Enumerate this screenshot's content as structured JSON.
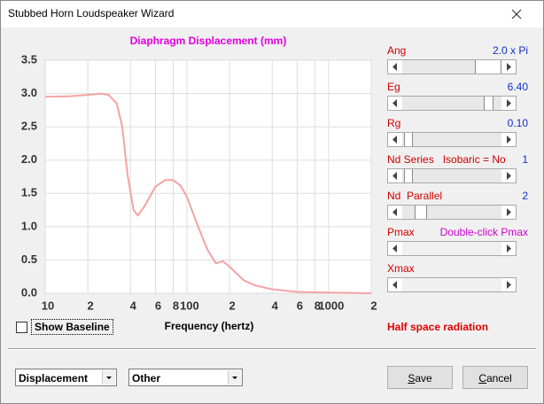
{
  "window": {
    "title": "Stubbed Horn Loudspeaker Wizard"
  },
  "chart_data": {
    "type": "line",
    "title": "Diaphragm Displacement (mm)",
    "x_label": "Frequency (hertz)",
    "x_scale": "log",
    "grid": true,
    "xlim": [
      10,
      2000
    ],
    "ylim": [
      0,
      3.5
    ],
    "xticks": [
      {
        "value": 10,
        "label": "10"
      },
      {
        "value": 20,
        "label": "2"
      },
      {
        "value": 40,
        "label": "4"
      },
      {
        "value": 60,
        "label": "6"
      },
      {
        "value": 80,
        "label": "8"
      },
      {
        "value": 100,
        "label": "100"
      },
      {
        "value": 200,
        "label": "2"
      },
      {
        "value": 400,
        "label": "4"
      },
      {
        "value": 600,
        "label": "6"
      },
      {
        "value": 800,
        "label": "8"
      },
      {
        "value": 1000,
        "label": "1000"
      },
      {
        "value": 2000,
        "label": "2"
      }
    ],
    "yticks": [
      {
        "value": 0,
        "label": "0.0"
      },
      {
        "value": 0.5,
        "label": "0.5"
      },
      {
        "value": 1,
        "label": "1.0"
      },
      {
        "value": 1.5,
        "label": "1.5"
      },
      {
        "value": 2,
        "label": "2.0"
      },
      {
        "value": 2.5,
        "label": "2.5"
      },
      {
        "value": 3,
        "label": "3.0"
      },
      {
        "value": 3.5,
        "label": "3.5"
      }
    ],
    "x": [
      10,
      15,
      20,
      25,
      28,
      32,
      35,
      38,
      42,
      45,
      50,
      60,
      70,
      80,
      90,
      100,
      120,
      140,
      160,
      180,
      200,
      250,
      300,
      400,
      600,
      1000,
      2000
    ],
    "series": [
      {
        "color": "#f4a3a3",
        "values": [
          2.95,
          2.96,
          2.98,
          3.0,
          2.98,
          2.85,
          2.5,
          1.8,
          1.25,
          1.17,
          1.3,
          1.6,
          1.7,
          1.7,
          1.62,
          1.45,
          1.0,
          0.65,
          0.45,
          0.48,
          0.4,
          0.2,
          0.12,
          0.06,
          0.02,
          0.01,
          0.0
        ]
      }
    ]
  },
  "controls": [
    {
      "label": "Ang",
      "value": "2.0 x Pi"
    },
    {
      "label": "Eg",
      "value": "6.40"
    },
    {
      "label": "Rg",
      "value": "0.10"
    },
    {
      "label": "Nd Series   Isobaric = No",
      "value": "1"
    },
    {
      "label": "Nd  Parallel",
      "value": "2"
    },
    {
      "label": "Pmax",
      "value": "Double-click Pmax"
    },
    {
      "label": "Xmax"
    }
  ],
  "radiation": "Half space radiation",
  "show_baseline": "Show Baseline",
  "dropdowns": [
    "Displacement",
    "Other"
  ],
  "buttons": [
    "Save",
    "Cancel"
  ]
}
